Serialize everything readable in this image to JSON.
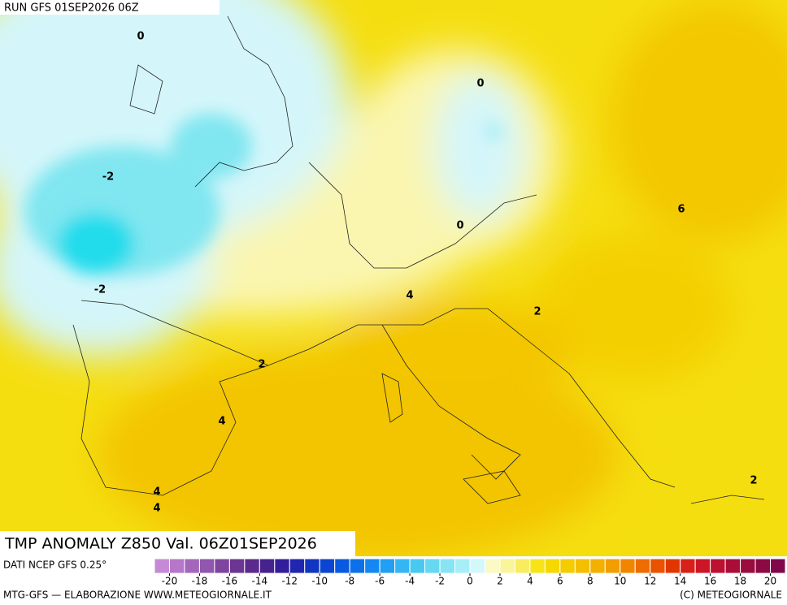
{
  "header": {
    "run": "RUN GFS 01SEP2026 06Z"
  },
  "map": {
    "contour_labels": [
      "0",
      "0",
      "-2",
      "0",
      "6",
      "-2",
      "4",
      "2",
      "2",
      "4",
      "4",
      "4",
      "2"
    ]
  },
  "title": "TMP ANOMALY Z850 Val. 06Z01SEP2026",
  "legend": {
    "source": "DATI NCEP GFS 0.25°",
    "lim": [
      -21,
      21
    ],
    "ticks": [
      -20,
      -18,
      -16,
      -14,
      -12,
      -10,
      -8,
      -6,
      -4,
      -2,
      0,
      2,
      4,
      6,
      8,
      10,
      12,
      14,
      16,
      18,
      20
    ],
    "colors": [
      "#c58ad6",
      "#b676c9",
      "#a466bb",
      "#9156ad",
      "#7f459e",
      "#6d3592",
      "#5a2b8c",
      "#45228c",
      "#321e9c",
      "#2026b0",
      "#1235c2",
      "#0a46d2",
      "#0a5ae0",
      "#0c70ea",
      "#1487f2",
      "#229ef4",
      "#34b6f4",
      "#48c9f2",
      "#66d8f2",
      "#86e4f4",
      "#a8eef6",
      "#d2f8fa",
      "#fbf9c4",
      "#faf49a",
      "#f8ec60",
      "#f6e418",
      "#f5d800",
      "#f4cc00",
      "#f3bf00",
      "#f2b000",
      "#f29d00",
      "#f08600",
      "#ee6c00",
      "#ea5200",
      "#e23600",
      "#d8201a",
      "#cc1626",
      "#bc1230",
      "#aa0e38",
      "#9a0c3e",
      "#8c0a44",
      "#80084a"
    ]
  },
  "footer": {
    "left": "MTG-GFS — ELABORAZIONE WWW.METEOGIORNALE.IT",
    "right": "(C) METEOGIORNALE"
  }
}
